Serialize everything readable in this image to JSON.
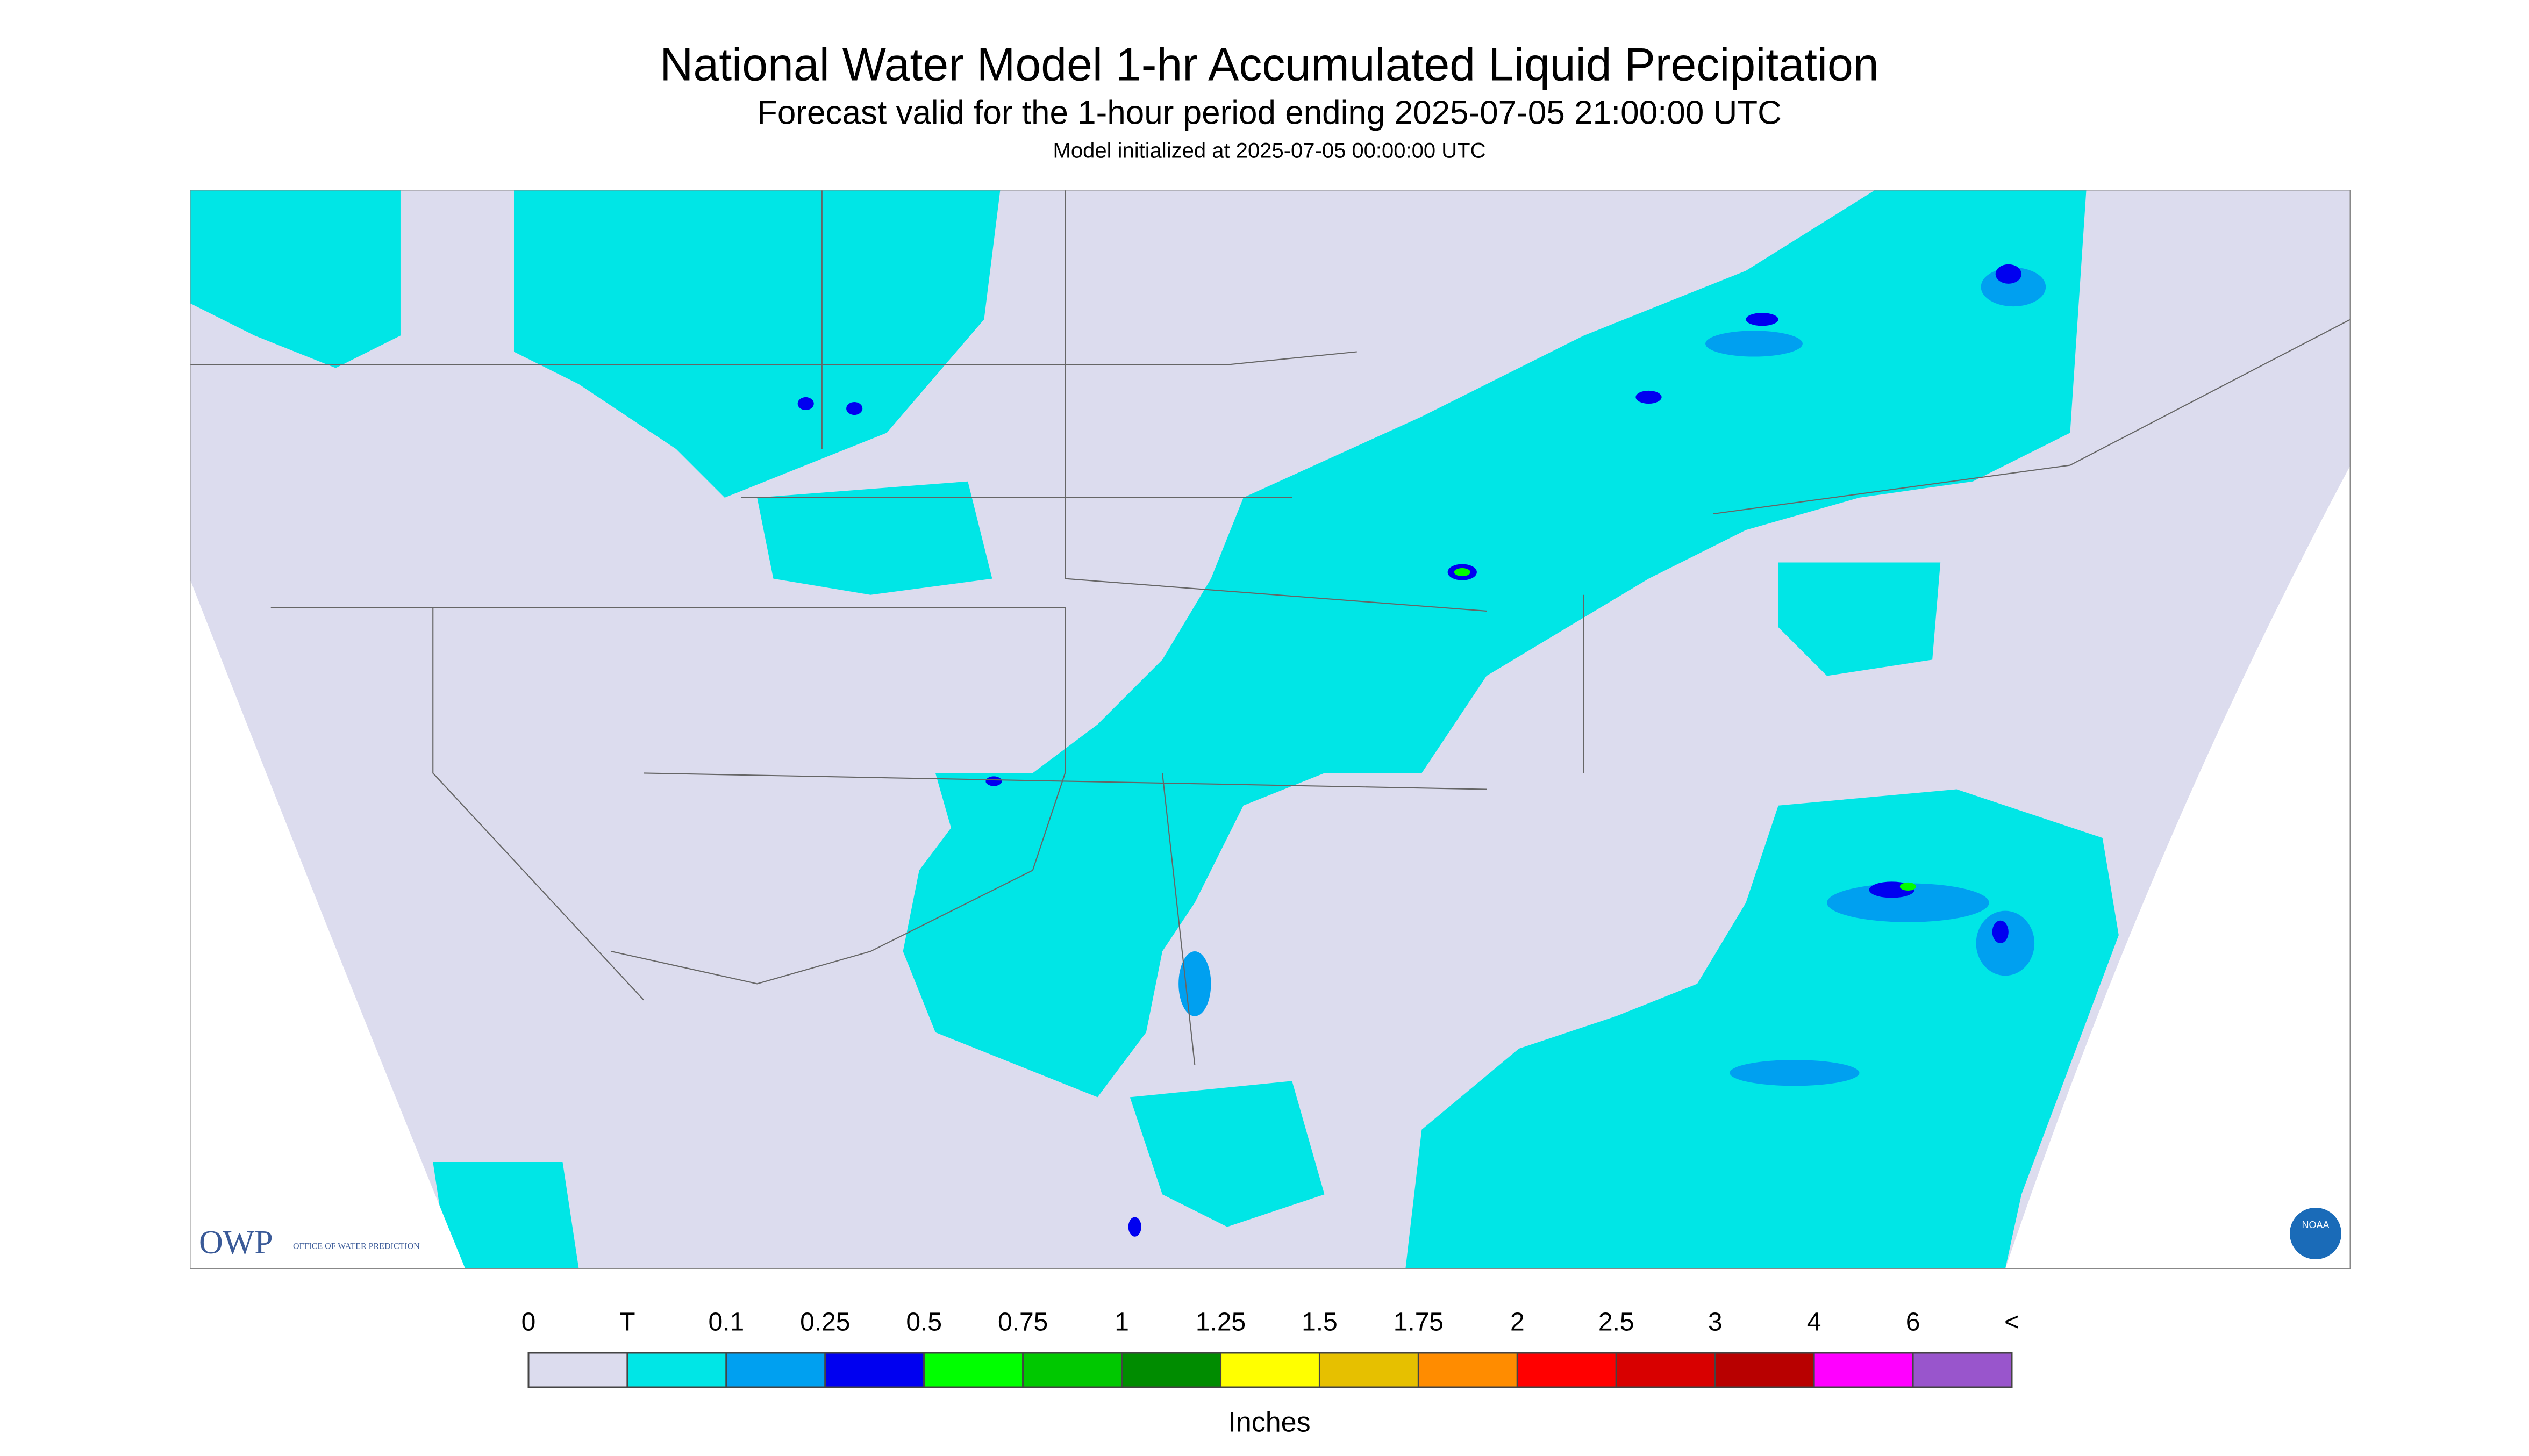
{
  "header": {
    "title": "National Water Model 1-hr Accumulated Liquid Precipitation",
    "subtitle": "Forecast valid for the 1-hour period ending 2025-07-05 21:00:00 UTC",
    "initialized": "Model initialized at 2025-07-05 00:00:00 UTC"
  },
  "legend": {
    "labels": [
      "0",
      "T",
      "0.1",
      "0.25",
      "0.5",
      "0.75",
      "1",
      "1.25",
      "1.5",
      "1.75",
      "2",
      "2.5",
      "3",
      "4",
      "6",
      "<"
    ],
    "colors": [
      "#dcdcee",
      "#00e6e6",
      "#00a0f0",
      "#0000f0",
      "#00ff00",
      "#00c800",
      "#008c00",
      "#ffff00",
      "#e6c000",
      "#ff8c00",
      "#ff0000",
      "#d80000",
      "#b80000",
      "#ff00ff",
      "#9955cc"
    ],
    "unit": "Inches"
  },
  "logos": {
    "owp": "OWP",
    "owp_name": "OFFICE OF WATER PREDICTION",
    "noaa": "NOAA"
  }
}
